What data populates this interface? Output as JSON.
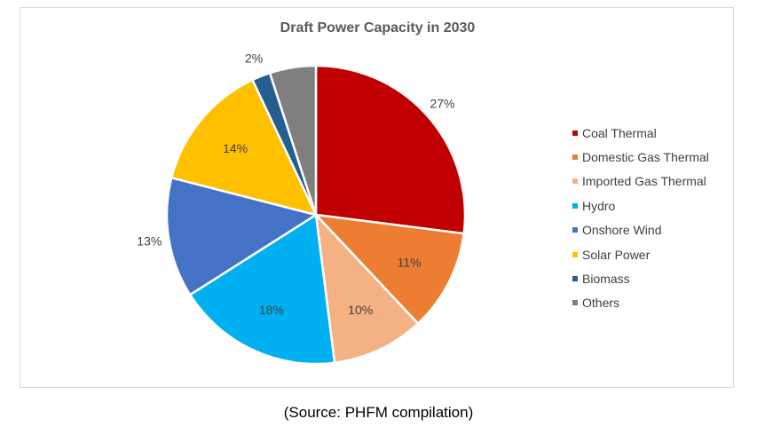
{
  "chart_data": {
    "type": "pie",
    "title": "Draft Power Capacity in 2030",
    "slices": [
      {
        "label": "Coal Thermal",
        "value": 27,
        "display": "27%",
        "color": "#C00000"
      },
      {
        "label": "Domestic Gas Thermal",
        "value": 11,
        "display": "11%",
        "color": "#ED7D31"
      },
      {
        "label": "Imported Gas Thermal",
        "value": 10,
        "display": "10%",
        "color": "#F4B183"
      },
      {
        "label": "Hydro",
        "value": 18,
        "display": "18%",
        "color": "#00B0F0"
      },
      {
        "label": "Onshore Wind",
        "value": 13,
        "display": "13%",
        "color": "#4472C4"
      },
      {
        "label": "Solar Power",
        "value": 14,
        "display": "14%",
        "color": "#FFC000"
      },
      {
        "label": "Biomass",
        "value": 2,
        "display": "2%",
        "color": "#255E91"
      },
      {
        "label": "Others",
        "value": 5,
        "display": "",
        "color": "#7F7F7F"
      }
    ],
    "legend_position": "right",
    "data_label_unit": "%"
  },
  "caption": "(Source: PHFM compilation)"
}
